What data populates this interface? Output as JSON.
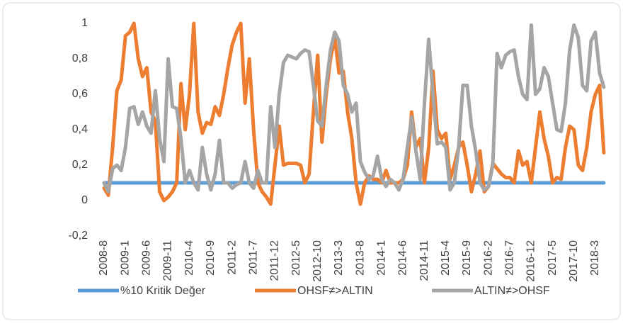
{
  "chart_data": {
    "type": "line",
    "categories": [
      "2008-8",
      null,
      null,
      null,
      null,
      "2009-1",
      null,
      null,
      null,
      null,
      "2009-6",
      null,
      null,
      null,
      null,
      "2009-11",
      null,
      null,
      null,
      null,
      "2010-4",
      null,
      null,
      null,
      null,
      "2010-9",
      null,
      null,
      null,
      null,
      "2011-2",
      null,
      null,
      null,
      null,
      "2011-7",
      null,
      null,
      null,
      null,
      "2011-12",
      null,
      null,
      null,
      null,
      "2012-5",
      null,
      null,
      null,
      null,
      "2012-10",
      null,
      null,
      null,
      null,
      "2013-3",
      null,
      null,
      null,
      null,
      "2013-8",
      null,
      null,
      null,
      null,
      "2014-1",
      null,
      null,
      null,
      null,
      "2014-6",
      null,
      null,
      null,
      null,
      "2014-11",
      null,
      null,
      null,
      null,
      "2015-4",
      null,
      null,
      null,
      null,
      "2015-9",
      null,
      null,
      null,
      null,
      "2016-2",
      null,
      null,
      null,
      null,
      "2016-7",
      null,
      null,
      null,
      null,
      "2016-12",
      null,
      null,
      null,
      null,
      "2017-5",
      null,
      null,
      null,
      null,
      "2017-10",
      null,
      null,
      null,
      null,
      "2018-3",
      null,
      null
    ],
    "series": [
      {
        "name": "%10 Kritik Değer",
        "color": "#5b9bd5",
        "values": [
          0.1,
          0.1,
          0.1,
          0.1,
          0.1,
          0.1,
          0.1,
          0.1,
          0.1,
          0.1,
          0.1,
          0.1,
          0.1,
          0.1,
          0.1,
          0.1,
          0.1,
          0.1,
          0.1,
          0.1,
          0.1,
          0.1,
          0.1,
          0.1,
          0.1,
          0.1,
          0.1,
          0.1,
          0.1,
          0.1,
          0.1,
          0.1,
          0.1,
          0.1,
          0.1,
          0.1,
          0.1,
          0.1,
          0.1,
          0.1,
          0.1,
          0.1,
          0.1,
          0.1,
          0.1,
          0.1,
          0.1,
          0.1,
          0.1,
          0.1,
          0.1,
          0.1,
          0.1,
          0.1,
          0.1,
          0.1,
          0.1,
          0.1,
          0.1,
          0.1,
          0.1,
          0.1,
          0.1,
          0.1,
          0.1,
          0.1,
          0.1,
          0.1,
          0.1,
          0.1,
          0.1,
          0.1,
          0.1,
          0.1,
          0.1,
          0.1,
          0.1,
          0.1,
          0.1,
          0.1,
          0.1,
          0.1,
          0.1,
          0.1,
          0.1,
          0.1,
          0.1,
          0.1,
          0.1,
          0.1,
          0.1,
          0.1,
          0.1,
          0.1,
          0.1,
          0.1,
          0.1,
          0.1,
          0.1,
          0.1,
          0.1,
          0.1,
          0.1,
          0.1,
          0.1,
          0.1,
          0.1,
          0.1,
          0.1,
          0.1,
          0.1,
          0.1,
          0.1,
          0.1,
          0.1,
          0.1,
          0.1,
          0.1
        ]
      },
      {
        "name": "OHSF≠>ALTIN",
        "color": "#ed7d31",
        "values": [
          0.07,
          0.03,
          0.3,
          0.62,
          0.68,
          0.93,
          0.95,
          1.0,
          0.8,
          0.7,
          0.75,
          0.5,
          0.45,
          0.05,
          0.0,
          0.02,
          0.05,
          0.1,
          0.66,
          0.4,
          0.6,
          1.0,
          0.5,
          0.38,
          0.44,
          0.43,
          0.53,
          0.48,
          0.6,
          0.75,
          0.88,
          0.95,
          1.0,
          0.55,
          0.8,
          0.4,
          0.1,
          0.05,
          0.02,
          -0.02,
          0.2,
          0.42,
          0.2,
          0.21,
          0.21,
          0.21,
          0.2,
          0.1,
          0.15,
          0.5,
          0.82,
          0.33,
          0.6,
          0.8,
          0.92,
          0.72,
          0.73,
          0.5,
          0.35,
          0.1,
          -0.02,
          0.1,
          0.14,
          0.12,
          0.12,
          0.1,
          0.17,
          0.1,
          0.1,
          0.1,
          0.12,
          0.2,
          0.5,
          0.3,
          0.35,
          0.1,
          0.3,
          0.73,
          0.4,
          0.35,
          0.38,
          0.12,
          0.2,
          0.3,
          0.33,
          0.2,
          0.05,
          0.15,
          0.28,
          0.05,
          0.08,
          0.21,
          0.18,
          0.15,
          0.13,
          0.13,
          0.1,
          0.28,
          0.2,
          0.22,
          0.1,
          0.3,
          0.5,
          0.35,
          0.25,
          0.1,
          0.13,
          0.12,
          0.3,
          0.42,
          0.4,
          0.2,
          0.17,
          0.3,
          0.5,
          0.6,
          0.65,
          0.27
        ]
      },
      {
        "name": "ALTIN≠>OHSF",
        "color": "#a5a5a5",
        "values": [
          0.1,
          0.05,
          0.18,
          0.2,
          0.17,
          0.3,
          0.52,
          0.53,
          0.43,
          0.5,
          0.42,
          0.38,
          0.62,
          0.35,
          0.22,
          0.8,
          0.53,
          0.52,
          0.35,
          0.1,
          0.17,
          0.1,
          0.06,
          0.3,
          0.15,
          0.06,
          0.15,
          0.34,
          0.1,
          0.1,
          0.07,
          0.09,
          0.1,
          0.22,
          0.1,
          0.07,
          0.17,
          0.1,
          0.1,
          0.53,
          0.3,
          0.6,
          0.78,
          0.82,
          0.81,
          0.8,
          0.83,
          0.85,
          0.84,
          0.65,
          0.45,
          0.42,
          0.65,
          0.85,
          0.95,
          0.9,
          0.65,
          0.6,
          0.5,
          0.55,
          0.22,
          0.16,
          0.12,
          0.14,
          0.25,
          0.12,
          0.08,
          0.12,
          0.1,
          0.06,
          0.12,
          0.3,
          0.47,
          0.28,
          0.12,
          0.55,
          0.91,
          0.6,
          0.32,
          0.33,
          0.3,
          0.06,
          0.1,
          0.3,
          0.65,
          0.65,
          0.42,
          0.28,
          0.1,
          0.06,
          0.08,
          0.2,
          0.83,
          0.75,
          0.82,
          0.84,
          0.85,
          0.7,
          0.6,
          0.57,
          0.99,
          0.6,
          0.63,
          0.75,
          0.7,
          0.55,
          0.4,
          0.39,
          0.55,
          0.85,
          0.99,
          0.92,
          0.65,
          0.62,
          0.9,
          0.95,
          0.72,
          0.64
        ]
      }
    ],
    "ylim": [
      -0.2,
      1
    ],
    "yticks": [
      {
        "value": -0.2,
        "label": "-0,2"
      },
      0,
      {
        "value": 0.2,
        "label": "0,2"
      },
      {
        "value": 0.4,
        "label": "0,4"
      },
      {
        "value": 0.6,
        "label": "0,6"
      },
      {
        "value": 0.8,
        "label": "0,8"
      },
      1
    ],
    "legend": "bottom"
  }
}
